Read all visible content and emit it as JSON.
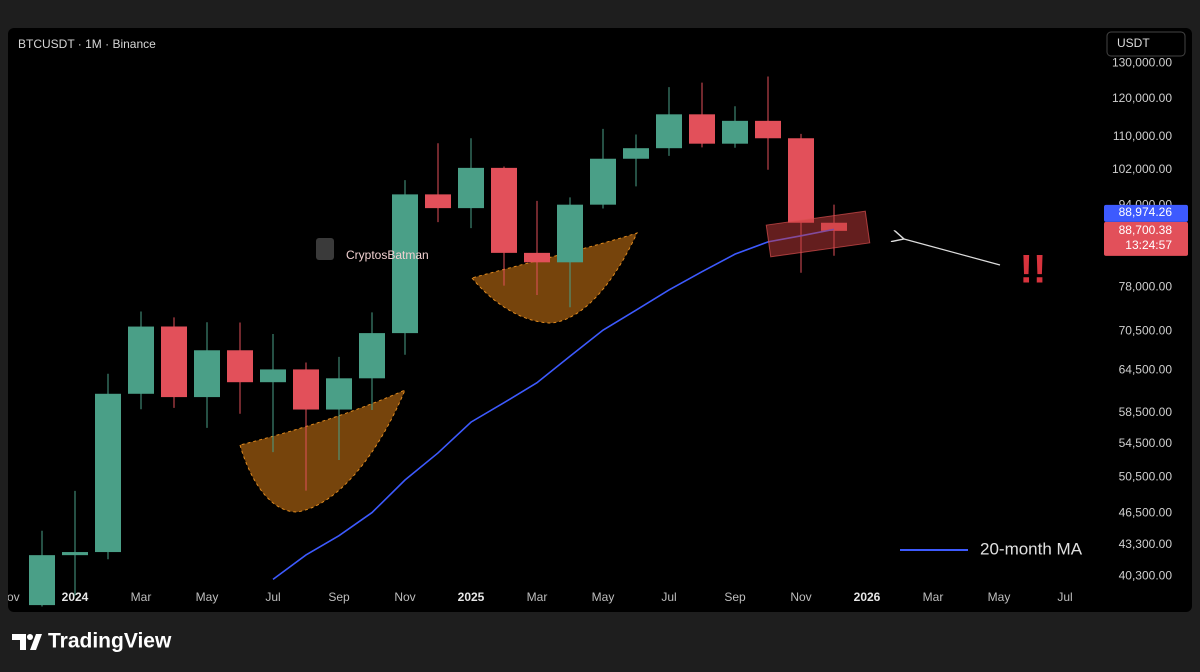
{
  "chart_data": {
    "type": "candlestick",
    "title": "BTCUSDT · 1M · Binance",
    "currency_button": "USDT",
    "watermark": "CryptosBatman",
    "categories": [
      "Nov",
      null,
      "2024",
      null,
      "Mar",
      null,
      "May",
      null,
      "Jul",
      null,
      "Sep",
      null,
      "Nov",
      null,
      "2025",
      null,
      "Mar",
      null,
      "May",
      null,
      "Jul",
      null,
      "Sep",
      null,
      "Nov",
      null,
      "2026",
      null,
      "Mar",
      null,
      "May",
      null,
      "Jul"
    ],
    "series": [
      {
        "type": "candlestick",
        "up_color": "#4a9f87",
        "down_color": "#e2505a",
        "open": [
          null,
          37720,
          42280,
          42580,
          61130,
          71290,
          60670,
          67520,
          62770,
          64630,
          58970,
          63330,
          70220,
          96410,
          93430,
          102430,
          84350,
          82550,
          94170,
          104590,
          107140,
          115760,
          108250,
          114050,
          109600,
          90360,
          null,
          null,
          null,
          null,
          null,
          null,
          null
        ],
        "high": [
          null,
          44700,
          48970,
          64000,
          73780,
          72800,
          71980,
          71950,
          70080,
          65660,
          66500,
          73620,
          99590,
          108350,
          109590,
          102750,
          95000,
          95760,
          111980,
          110530,
          123200,
          124470,
          117900,
          126200,
          110700,
          94170,
          null,
          null,
          null,
          null,
          null,
          null,
          null
        ],
        "low": [
          null,
          37600,
          38550,
          41880,
          59000,
          59190,
          56550,
          58400,
          53500,
          49000,
          52550,
          58900,
          66840,
          90500,
          89260,
          78260,
          76600,
          74500,
          93350,
          98200,
          105280,
          107350,
          107260,
          102000,
          80600,
          83800,
          null,
          null,
          null,
          null,
          null,
          null,
          null
        ],
        "close": [
          null,
          42280,
          42580,
          61130,
          71280,
          60670,
          67520,
          62770,
          64630,
          58970,
          63330,
          70220,
          96410,
          93430,
          102430,
          84350,
          82550,
          94170,
          104590,
          107140,
          115760,
          108250,
          114050,
          109600,
          90360,
          88700.38,
          null,
          null,
          null,
          null,
          null,
          null,
          null
        ]
      },
      {
        "type": "line",
        "name": "20-month MA",
        "color": "#3d5afe",
        "values": [
          null,
          null,
          null,
          null,
          null,
          null,
          null,
          null,
          40000,
          42300,
          44200,
          46600,
          50200,
          53400,
          57300,
          59900,
          62700,
          66600,
          70700,
          74000,
          77500,
          80800,
          84100,
          86500,
          87700,
          89000,
          null,
          null,
          null,
          null,
          null,
          null,
          null
        ]
      }
    ],
    "ylim": [
      37300,
      141000
    ],
    "log_scale": true,
    "yticks": [
      {
        "value": 130000,
        "label": "130,000.00"
      },
      {
        "value": 120000,
        "label": "120,000.00"
      },
      {
        "value": 110000,
        "label": "110,000.00"
      },
      {
        "value": 102000,
        "label": "102,000.00"
      },
      {
        "value": 94000,
        "label": "94,000.00"
      },
      {
        "value": 78000,
        "label": "78,000.00"
      },
      {
        "value": 70500,
        "label": "70,500.00"
      },
      {
        "value": 64500,
        "label": "64,500.00"
      },
      {
        "value": 58500,
        "label": "58,500.00"
      },
      {
        "value": 54500,
        "label": "54,500.00"
      },
      {
        "value": 50500,
        "label": "50,500.00"
      },
      {
        "value": 46500,
        "label": "46,500.00"
      },
      {
        "value": 43300,
        "label": "43,300.00"
      },
      {
        "value": 40300,
        "label": "40,300.00"
      }
    ],
    "ma_price": {
      "value": 88974.26,
      "label": "88,974.26",
      "color": "#3d5afe"
    },
    "last_price": {
      "value": 88700.38,
      "label": "88,700.38",
      "color": "#e2505a"
    },
    "countdown": "13:24:57",
    "annotation": "!!",
    "brand": "TradingView"
  }
}
